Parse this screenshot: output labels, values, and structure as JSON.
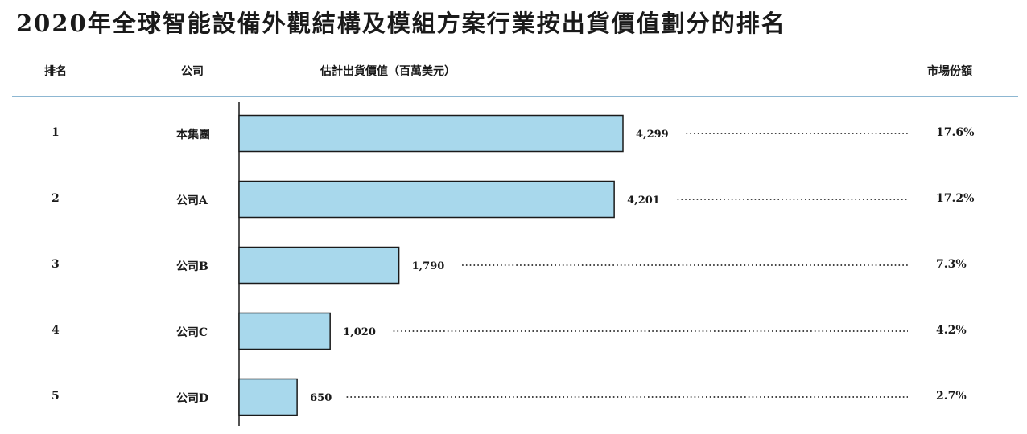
{
  "title": "2020年全球智能設備外觀結構及模組方案行業按出貨價值劃分的排名",
  "headers": {
    "rank": "排名",
    "company": "公司",
    "value": "估計出貨價值（百萬美元）",
    "share": "市場份額"
  },
  "rows": [
    {
      "rank": "1",
      "company": "本集團",
      "value_label": "4,299",
      "share": "17.6%"
    },
    {
      "rank": "2",
      "company": "公司A",
      "value_label": "4,201",
      "share": "17.2%"
    },
    {
      "rank": "3",
      "company": "公司B",
      "value_label": "1,790",
      "share": "7.3%"
    },
    {
      "rank": "4",
      "company": "公司C",
      "value_label": "1,020",
      "share": "4.2%"
    },
    {
      "rank": "5",
      "company": "公司D",
      "value_label": "650",
      "share": "2.7%"
    }
  ],
  "colors": {
    "bar_fill": "#a8d8ec",
    "bar_stroke": "#1a1a1a",
    "header_rule": "#8db7d2",
    "leader_dots": "#444444"
  },
  "chart_data": {
    "type": "bar",
    "orientation": "horizontal",
    "categories": [
      "本集團",
      "公司A",
      "公司B",
      "公司C",
      "公司D"
    ],
    "values": [
      4299,
      4201,
      1790,
      1020,
      650
    ],
    "shares": [
      17.6,
      17.2,
      7.3,
      4.2,
      2.7
    ],
    "title": "2020年全球智能設備外觀結構及模組方案行業按出貨價值劃分的排名",
    "xlabel": "估計出貨價值（百萬美元）",
    "ylabel": "",
    "xlim": [
      0,
      4299
    ],
    "grid": false,
    "legend": "none"
  }
}
